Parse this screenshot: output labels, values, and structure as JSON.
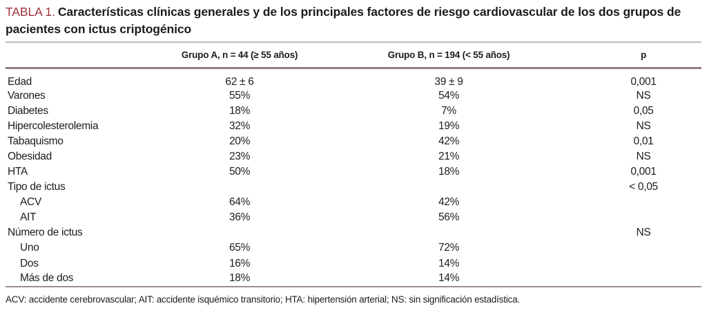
{
  "title": {
    "label": "TABLA 1.",
    "text": "Características clínicas generales y de los principales factores de riesgo cardiovascular de los dos grupos de pacientes con ictus criptogénico"
  },
  "table": {
    "columns": [
      "",
      "Grupo A, n = 44 (≥ 55 años)",
      "Grupo B, n = 194 (< 55 años)",
      "p"
    ],
    "rows": [
      {
        "label": "Edad",
        "indent": false,
        "grupo_a": "62 ± 6",
        "grupo_b": "39 ± 9",
        "p": "0,001"
      },
      {
        "label": "Varones",
        "indent": false,
        "grupo_a": "55%",
        "grupo_b": "54%",
        "p": "NS"
      },
      {
        "label": "Diabetes",
        "indent": false,
        "grupo_a": "18%",
        "grupo_b": "7%",
        "p": "0,05"
      },
      {
        "label": "Hipercolesterolemia",
        "indent": false,
        "grupo_a": "32%",
        "grupo_b": "19%",
        "p": "NS"
      },
      {
        "label": "Tabaquismo",
        "indent": false,
        "grupo_a": "20%",
        "grupo_b": "42%",
        "p": "0,01"
      },
      {
        "label": "Obesidad",
        "indent": false,
        "grupo_a": "23%",
        "grupo_b": "21%",
        "p": "NS"
      },
      {
        "label": "HTA",
        "indent": false,
        "grupo_a": "50%",
        "grupo_b": "18%",
        "p": "0,001"
      },
      {
        "label": "Tipo de ictus",
        "indent": false,
        "grupo_a": "",
        "grupo_b": "",
        "p": "< 0,05"
      },
      {
        "label": "ACV",
        "indent": true,
        "grupo_a": "64%",
        "grupo_b": "42%",
        "p": ""
      },
      {
        "label": "AIT",
        "indent": true,
        "grupo_a": "36%",
        "grupo_b": "56%",
        "p": ""
      },
      {
        "label": "Número de ictus",
        "indent": false,
        "grupo_a": "",
        "grupo_b": "",
        "p": "NS"
      },
      {
        "label": "Uno",
        "indent": true,
        "grupo_a": "65%",
        "grupo_b": "72%",
        "p": ""
      },
      {
        "label": "Dos",
        "indent": true,
        "grupo_a": "16%",
        "grupo_b": "14%",
        "p": ""
      },
      {
        "label": "Más de dos",
        "indent": true,
        "grupo_a": "18%",
        "grupo_b": "14%",
        "p": ""
      }
    ]
  },
  "footnote": "ACV: accidente cerebrovascular; AIT: accidente isquémico transitorio; HTA: hipertensión arterial; NS: sin significación estadística.",
  "colors": {
    "accent": "#9e323b",
    "text": "#1c1c1c",
    "rule_heavy": "#8f7d82",
    "rule_light": "#c3b8ba",
    "rule_bottom": "#9b8d90"
  }
}
